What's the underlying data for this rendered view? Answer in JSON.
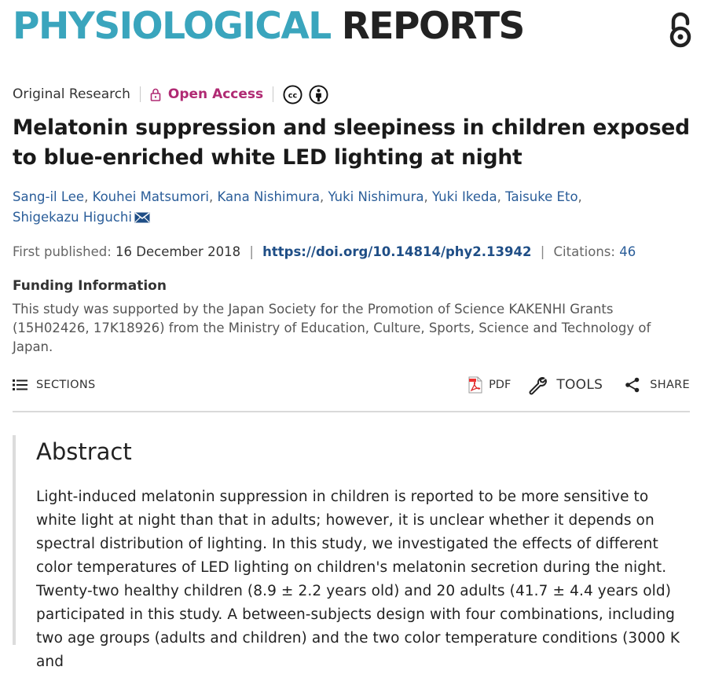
{
  "journal": {
    "name_part1": "PHYSIOLOGICAL",
    "name_part2": "REPORTS"
  },
  "meta": {
    "article_type": "Original Research",
    "open_access_label": "Open Access"
  },
  "title": "Melatonin suppression and sleepiness in children exposed to blue-enriched white LED lighting at night",
  "authors": [
    "Sang-il Lee",
    "Kouhei Matsumori",
    "Kana Nishimura",
    "Yuki Nishimura",
    "Yuki Ikeda",
    "Taisuke Eto",
    "Shigekazu Higuchi"
  ],
  "publication": {
    "first_published_label": "First published:",
    "first_published_date": "16 December 2018",
    "doi": "https://doi.org/10.14814/phy2.13942",
    "citations_label": "Citations:",
    "citations_count": "46"
  },
  "funding": {
    "title": "Funding Information",
    "text": "This study was supported by the Japan Society for the Promotion of Science KAKENHI Grants (15H02426, 17K18926) from the Ministry of Education, Culture, Sports, Science and Technology of Japan."
  },
  "toolbar": {
    "sections_label": "SECTIONS",
    "pdf_label": "PDF",
    "tools_label": "TOOLS",
    "share_label": "SHARE"
  },
  "abstract": {
    "heading": "Abstract",
    "text": "Light-induced melatonin suppression in children is reported to be more sensitive to white light at night than that in adults; however, it is unclear whether it depends on spectral distribution of lighting. In this study, we investigated the effects of different color temperatures of LED lighting on children's melatonin secretion during the night. Twenty-two healthy children (8.9 ± 2.2 years old) and 20 adults (41.7 ± 4.4 years old) participated in this study. A between-subjects design with four combinations, including two age groups (adults and children) and the two color temperature conditions (3000 K and"
  },
  "colors": {
    "journal_accent": "#3aa5bd",
    "open_access": "#b02a73",
    "link": "#2a5d99",
    "doi": "#1f4e86"
  },
  "icons": [
    "open-access-lock-icon",
    "creative-commons-icon",
    "attribution-icon",
    "mail-icon",
    "hamburger-icon",
    "pdf-icon",
    "wrench-icon",
    "share-icon"
  ]
}
